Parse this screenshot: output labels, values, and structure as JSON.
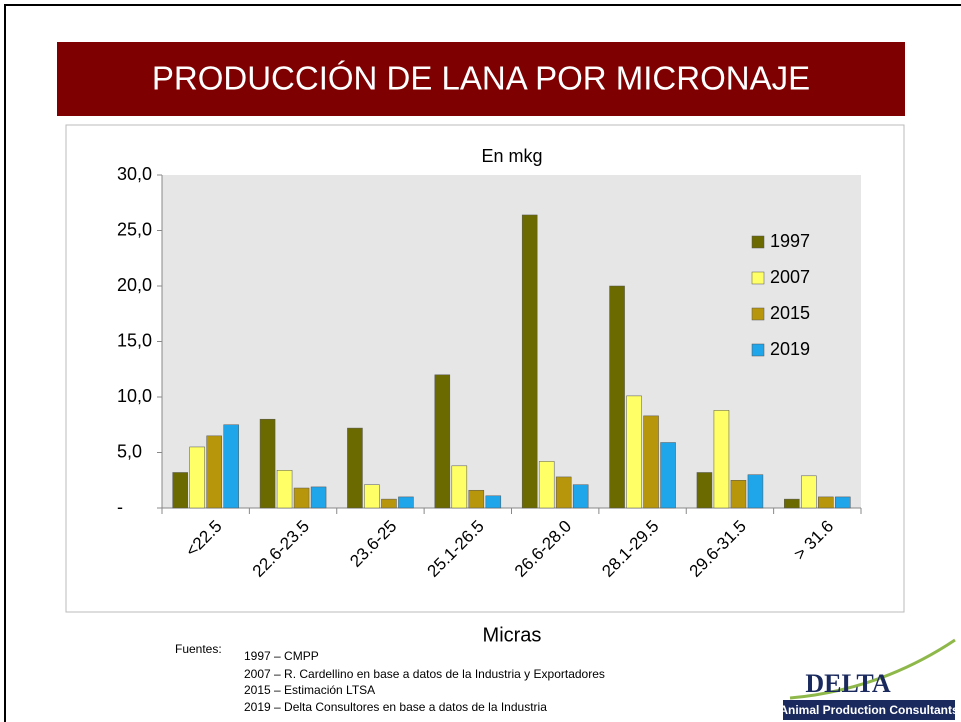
{
  "slide": {
    "title": "PRODUCCIÓN DE LANA POR MICRONAJE"
  },
  "chart_data": {
    "type": "bar",
    "subtitle": "En mkg",
    "x_label": "Micras",
    "categories": [
      "<22.5",
      "22.6-23.5",
      "23.6-25",
      "25.1-26.5",
      "26.6-28.0",
      "28.1-29.5",
      "29.6-31.5",
      "> 31.6"
    ],
    "series": [
      {
        "name": "1997",
        "color": "#6b6a00",
        "values": [
          3.2,
          8.0,
          7.2,
          12.0,
          26.4,
          20.0,
          3.2,
          0.8
        ]
      },
      {
        "name": "2007",
        "color": "#ffff66",
        "values": [
          5.5,
          3.4,
          2.1,
          3.8,
          4.2,
          10.1,
          8.8,
          2.9
        ]
      },
      {
        "name": "2015",
        "color": "#b8960c",
        "values": [
          6.5,
          1.8,
          0.8,
          1.6,
          2.8,
          8.3,
          2.5,
          1.0
        ]
      },
      {
        "name": "2019",
        "color": "#1ea5ea",
        "values": [
          7.5,
          1.9,
          1.0,
          1.1,
          2.1,
          5.9,
          3.0,
          1.0
        ]
      }
    ],
    "ylim": [
      0,
      30
    ],
    "yticks": [
      {
        "value": 0,
        "label": "-"
      },
      {
        "value": 5,
        "label": "5,0"
      },
      {
        "value": 10,
        "label": "10,0"
      },
      {
        "value": 15,
        "label": "15,0"
      },
      {
        "value": 20,
        "label": "20,0"
      },
      {
        "value": 25,
        "label": "25,0"
      },
      {
        "value": 30,
        "label": "30,0"
      }
    ],
    "legend": "right",
    "grid": false
  },
  "sources": {
    "heading": "Fuentes:",
    "lines": [
      "1997 – CMPP",
      "2007 – R. Cardellino en base a datos de la Industria y Exportadores",
      "2015 – Estimación LTSA",
      "2019 – Delta Consultores en base a datos de la Industria"
    ]
  },
  "logo": {
    "name": "DELTA",
    "tagline": "Animal Production Consultants"
  }
}
